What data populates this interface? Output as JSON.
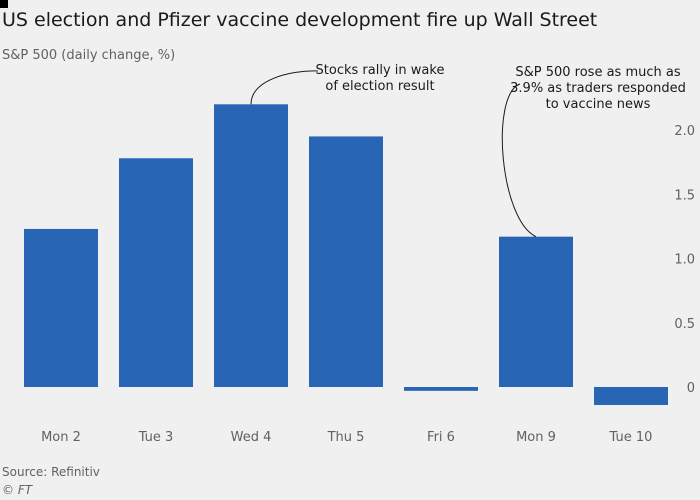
{
  "title": "US election and Pfizer vaccine development fire up Wall Street",
  "subtitle": "S&P 500 (daily change, %)",
  "source": "Source: Refinitiv",
  "credit": "© FT",
  "colors": {
    "bar": "#2965b5",
    "zero_line": "#33302e",
    "text": "#66605c",
    "grid": "#d9d4cf"
  },
  "chart_data": {
    "type": "bar",
    "title": "US election and Pfizer vaccine development fire up Wall Street",
    "subtitle": "S&P 500 (daily change, %)",
    "categories": [
      "Mon 2",
      "Tue 3",
      "Wed 4",
      "Thu 5",
      "Fri 6",
      "Mon 9",
      "Tue 10"
    ],
    "values": [
      1.23,
      1.78,
      2.2,
      1.95,
      -0.03,
      1.17,
      -0.14
    ],
    "xlabel": "",
    "ylabel": "",
    "ylim": [
      -0.14,
      2.2
    ],
    "yticks": [
      0,
      0.5,
      1.0,
      1.5,
      2.0
    ],
    "ytick_labels": [
      "0",
      "0.5",
      "1.0",
      "1.5",
      "2.0"
    ],
    "y_axis_position": "right",
    "grid": false,
    "annotations": [
      {
        "category": "Wed 4",
        "lines": [
          "Stocks rally in wake",
          "of election result"
        ]
      },
      {
        "category": "Mon 9",
        "lines": [
          "S&P 500 rose as much as",
          "3.9% as traders responded",
          "to vaccine news"
        ]
      }
    ]
  }
}
